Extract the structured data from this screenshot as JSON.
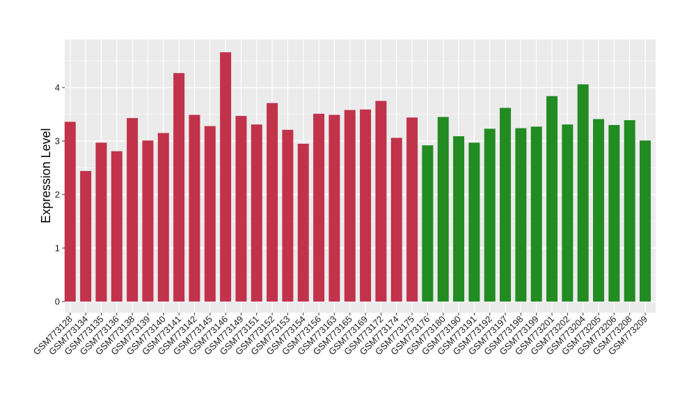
{
  "chart_data": {
    "type": "bar",
    "title": "",
    "xlabel": "",
    "ylabel": "Expression Level",
    "ylim": [
      0,
      4.75
    ],
    "yticks": [
      0,
      1,
      2,
      3,
      4
    ],
    "grid": true,
    "legend": "none",
    "colors": {
      "panel": "#ebebeb",
      "grid": "#ffffff",
      "group1": "#c0334b",
      "group2": "#228b22"
    },
    "categories": [
      "GSM773128",
      "GSM773134",
      "GSM773135",
      "GSM773136",
      "GSM773138",
      "GSM773139",
      "GSM773140",
      "GSM773141",
      "GSM773142",
      "GSM773145",
      "GSM773146",
      "GSM773149",
      "GSM773151",
      "GSM773152",
      "GSM773153",
      "GSM773154",
      "GSM773156",
      "GSM773163",
      "GSM773165",
      "GSM773169",
      "GSM773172",
      "GSM773174",
      "GSM773175",
      "GSM773176",
      "GSM773180",
      "GSM773190",
      "GSM773191",
      "GSM773192",
      "GSM773197",
      "GSM773198",
      "GSM773199",
      "GSM773201",
      "GSM773202",
      "GSM773204",
      "GSM773205",
      "GSM773206",
      "GSM773208",
      "GSM773209"
    ],
    "values": [
      3.36,
      2.44,
      2.97,
      2.81,
      3.43,
      3.01,
      3.15,
      4.27,
      3.49,
      3.28,
      4.66,
      3.47,
      3.31,
      3.71,
      3.21,
      2.95,
      3.51,
      3.49,
      3.58,
      3.59,
      3.75,
      3.06,
      3.44,
      2.92,
      3.45,
      3.09,
      2.97,
      3.23,
      3.62,
      3.24,
      3.27,
      3.84,
      3.31,
      4.06,
      3.41,
      3.3,
      3.39,
      3.01
    ],
    "groups": [
      "group1",
      "group1",
      "group1",
      "group1",
      "group1",
      "group1",
      "group1",
      "group1",
      "group1",
      "group1",
      "group1",
      "group1",
      "group1",
      "group1",
      "group1",
      "group1",
      "group1",
      "group1",
      "group1",
      "group1",
      "group1",
      "group1",
      "group1",
      "group2",
      "group2",
      "group2",
      "group2",
      "group2",
      "group2",
      "group2",
      "group2",
      "group2",
      "group2",
      "group2",
      "group2",
      "group2",
      "group2",
      "group2"
    ]
  }
}
